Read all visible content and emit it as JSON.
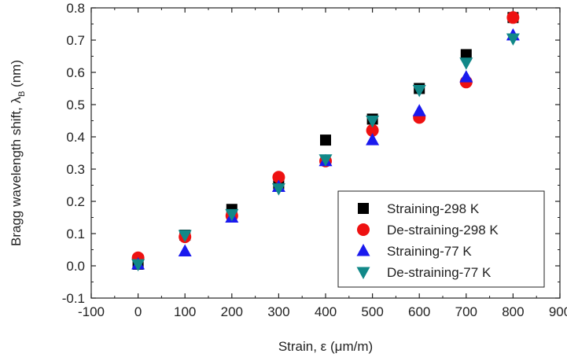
{
  "chart_data": {
    "type": "scatter",
    "title": "",
    "xlabel": "Strain, ε (μm/m)",
    "ylabel_main": "Bragg wavelength shift, λ",
    "ylabel_sub": "B",
    "ylabel_unit": " (nm)",
    "xlim": [
      -100,
      900
    ],
    "ylim": [
      -0.1,
      0.8
    ],
    "xticks": [
      -100,
      0,
      100,
      200,
      300,
      400,
      500,
      600,
      700,
      800,
      900
    ],
    "xtick_labels": [
      "-100",
      "0",
      "100",
      "200",
      "300",
      "400",
      "500",
      "600",
      "700",
      "800",
      "900"
    ],
    "yticks": [
      -0.1,
      0.0,
      0.1,
      0.2,
      0.3,
      0.4,
      0.5,
      0.6,
      0.7,
      0.8
    ],
    "ytick_labels": [
      "-0.1",
      "0.0",
      "0.1",
      "0.2",
      "0.3",
      "0.4",
      "0.5",
      "0.6",
      "0.7",
      "0.8"
    ],
    "grid": false,
    "legend_position": "bottom-right",
    "series": [
      {
        "name": "Straining-298 K",
        "marker": "square",
        "color": "#000000",
        "x": [
          0,
          100,
          200,
          300,
          400,
          500,
          600,
          700,
          800
        ],
        "y": [
          0.005,
          0.095,
          0.175,
          0.255,
          0.39,
          0.455,
          0.55,
          0.655,
          0.77
        ]
      },
      {
        "name": "De-straining-298 K",
        "marker": "circle",
        "color": "#ee1111",
        "x": [
          0,
          100,
          200,
          300,
          400,
          500,
          600,
          700,
          800
        ],
        "y": [
          0.025,
          0.09,
          0.155,
          0.275,
          0.325,
          0.42,
          0.46,
          0.57,
          0.77
        ]
      },
      {
        "name": "Straining-77 K",
        "marker": "triangle-up",
        "color": "#1a1aee",
        "x": [
          0,
          100,
          200,
          300,
          400,
          500,
          600,
          700,
          800
        ],
        "y": [
          0.005,
          0.045,
          0.15,
          0.245,
          0.325,
          0.39,
          0.48,
          0.585,
          0.715
        ]
      },
      {
        "name": "De-straining-77 K",
        "marker": "triangle-down",
        "color": "#118888",
        "x": [
          0,
          100,
          200,
          300,
          400,
          500,
          600,
          700,
          800
        ],
        "y": [
          0.005,
          0.095,
          0.16,
          0.24,
          0.33,
          0.45,
          0.545,
          0.63,
          0.705
        ]
      }
    ]
  }
}
